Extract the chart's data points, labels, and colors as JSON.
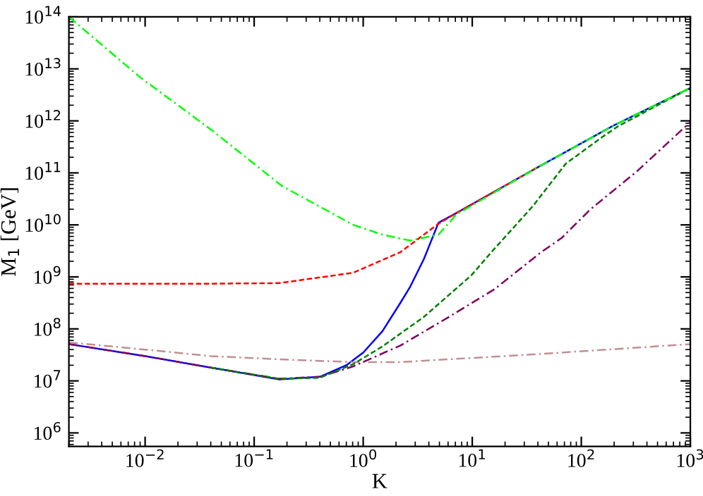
{
  "chart_data": {
    "type": "line",
    "xlabel": "K",
    "ylabel": "M$_{1}$ [GeV]",
    "log": "xy",
    "grid": false,
    "marker": "none",
    "xlim": [
      0.002,
      1000
    ],
    "ylim": [
      550000,
      100000000000000.0
    ],
    "xticks": [
      {
        "value": 0.01,
        "label": "10$^{−2}$"
      },
      {
        "value": 0.1,
        "label": "10$^{−1}$"
      },
      {
        "value": 1,
        "label": "10$^{0}$"
      },
      {
        "value": 10,
        "label": "10$^{1}$"
      },
      {
        "value": 100,
        "label": "10$^{2}$"
      },
      {
        "value": 1000,
        "label": "10$^{3}$"
      }
    ],
    "yticks": [
      {
        "value": 1000000.0,
        "label": "10$^{6}$"
      },
      {
        "value": 10000000.0,
        "label": "10$^{7}$"
      },
      {
        "value": 100000000.0,
        "label": "10$^{8}$"
      },
      {
        "value": 1000000000.0,
        "label": "10$^{9}$"
      },
      {
        "value": 10000000000.0,
        "label": "10$^{10}$"
      },
      {
        "value": 100000000000.0,
        "label": "10$^{11}$"
      },
      {
        "value": 1000000000000.0,
        "label": "10$^{12}$"
      },
      {
        "value": 10000000000000.0,
        "label": "10$^{13}$"
      },
      {
        "value": 100000000000000.0,
        "label": "10$^{14}$"
      }
    ],
    "series": [
      {
        "color": "#0000ff",
        "line_style": "solid",
        "x": [
          0.002,
          0.01,
          0.04,
          0.17,
          0.4,
          0.7,
          1,
          1.5,
          2.2,
          2.7,
          3.6,
          4.9,
          7.2,
          43,
          195,
          1000
        ],
        "values": [
          51000000.0,
          30000000.0,
          18000000.0,
          10700000.0,
          12000000.0,
          20000000.0,
          35000000.0,
          90000000.0,
          320000000.0,
          650000000.0,
          2200000000.0,
          11000000000.0,
          17000000000.0,
          140000000000.0,
          800000000000.0,
          4300000000000.0
        ]
      },
      {
        "color": "#c09090",
        "line_style": "dashdot",
        "x": [
          0.002,
          0.01,
          0.04,
          0.17,
          0.8,
          2.2,
          43,
          1000
        ],
        "values": [
          55000000.0,
          40000000.0,
          30000000.0,
          26000000.0,
          23000000.0,
          23000000.0,
          33000000.0,
          51000000.0
        ]
      },
      {
        "color": "#800060",
        "line_style": "dashdot",
        "x": [
          0.002,
          0.01,
          0.04,
          0.17,
          0.4,
          0.81,
          2.2,
          6,
          16,
          43,
          66,
          120,
          320,
          1000
        ],
        "values": [
          51000000.0,
          30000000.0,
          18000000.0,
          11000000.0,
          12000000.0,
          19000000.0,
          48000000.0,
          166000000.0,
          580000000.0,
          3000000000.0,
          5600000000.0,
          19500000000.0,
          105000000000.0,
          950000000000.0
        ]
      },
      {
        "color": "#008000",
        "line_style": "dashed",
        "x": [
          0.04,
          0.17,
          0.4,
          0.81,
          1.5,
          3.6,
          9.8,
          15,
          36,
          72,
          160,
          220,
          1000
        ],
        "values": [
          18000000.0,
          11000000.0,
          11500000.0,
          21000000.0,
          46000000.0,
          170000000.0,
          1070000000.0,
          3000000000.0,
          23000000000.0,
          150000000000.0,
          510000000000.0,
          800000000000.0,
          4300000000000.0
        ]
      },
      {
        "color": "#ff0000",
        "line_style": "dashed",
        "x": [
          0.002,
          0.04,
          0.17,
          0.81,
          2.2,
          4.9,
          7.2,
          43
        ],
        "values": [
          740000000.0,
          740000000.0,
          760000000.0,
          1200000000.0,
          3000000000.0,
          10500000000.0,
          17000000000.0,
          140000000000.0
        ]
      },
      {
        "color": "#00ff00",
        "line_style": "dashdot",
        "x": [
          0.002,
          0.009,
          0.041,
          0.18,
          0.81,
          1.5,
          2.7,
          4.9,
          7.2,
          43,
          195,
          1000
        ],
        "values": [
          100000000000000.0,
          6900000000000.0,
          660000000000.0,
          56000000000.0,
          10000000000.0,
          6500000000.0,
          5000000000.0,
          6500000000.0,
          16000000000.0,
          140000000000.0,
          800000000000.0,
          4300000000000.0
        ]
      }
    ]
  }
}
